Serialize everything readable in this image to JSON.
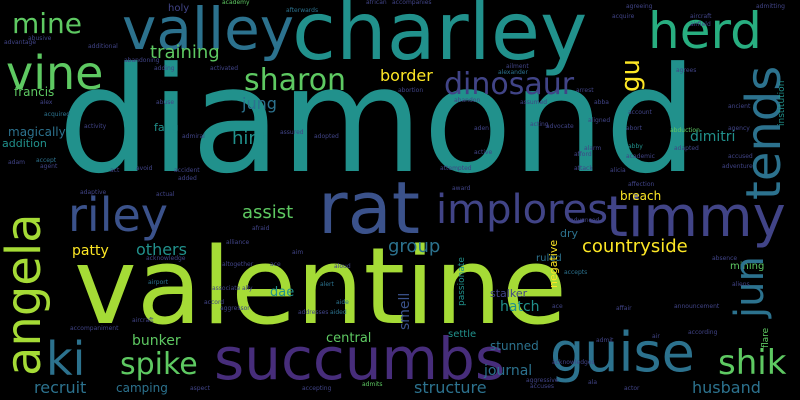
{
  "palette": {
    "background": "#000000",
    "teal": "#21918c",
    "lime": "#a5db36",
    "green": "#5ec962",
    "yellow": "#fde725",
    "slate": "#3b528b",
    "blue": "#2c728e",
    "indigo": "#414487",
    "purple": "#472d7b",
    "mint": "#28ae80",
    "dark": "#440154"
  },
  "words": {
    "diamond": "diamond",
    "valentine": "valentine",
    "charley": "charley",
    "rat": "rat",
    "succumbs": "succumbs",
    "valley": "valley",
    "guise": "guise",
    "timmy": "timmy",
    "riley": "riley",
    "implores": "implores",
    "angela": "angela",
    "tends": "tends",
    "herd": "herd",
    "vine": "vine",
    "jun": "jun",
    "ki": "ki",
    "shik": "shik",
    "spike": "spike",
    "dinosaur": "dinosaur",
    "sharon": "sharon",
    "mine": "mine",
    "countryside": "countryside",
    "gu": "gu",
    "training": "training",
    "border": "border",
    "assist": "assist",
    "others": "others",
    "jung": "jung",
    "hint": "hint",
    "group": "group",
    "patty": "patty",
    "francis": "francis",
    "bunker": "bunker",
    "journal": "journal",
    "structure": "structure",
    "husband": "husband",
    "recruit": "recruit",
    "hatch": "hatch",
    "dimitri": "dimitri",
    "breach": "breach",
    "dae": "dae",
    "central": "central",
    "magically": "magically",
    "addition": "addition",
    "stunned": "stunned",
    "camping": "camping",
    "smell": "smell",
    "stalker": "stalker",
    "settle": "settle",
    "fang": "fang",
    "mining": "mining",
    "flare": "flare",
    "institution": "institution",
    "negative": "negative",
    "ruled": "ruled",
    "dry": "dry",
    "passionate": "passionate",
    "holy": "holy",
    "acquire": "acquire",
    "abduction": "abduction",
    "abby": "abby",
    "alexander": "alexander",
    "airport": "airport",
    "accept": "accept",
    "actual": "actual",
    "advanced": "advanced",
    "affection": "affection",
    "account": "account",
    "accepts": "accepts",
    "abusive": "abusive",
    "academy": "academy",
    "admitting": "admitting",
    "activity": "activity",
    "aircraft": "aircraft",
    "aide": "aide",
    "afterwards": "afterwards",
    "acquired": "acquired",
    "alex": "alex",
    "adding": "adding",
    "activated": "activated",
    "abandoning": "abandoning",
    "african": "african",
    "accompanies": "accompanies",
    "aircraft2": "airfield",
    "agreeing": "agreeing",
    "additional": "additional",
    "advantage": "advantage",
    "agrees": "agrees",
    "abortion": "abortion",
    "abuse": "abuse",
    "active": "active",
    "alarm": "alarm",
    "attack": "attack",
    "accused": "accused",
    "adventure": "adventure",
    "absence": "absence",
    "acting": "acting",
    "abort": "abort",
    "assured": "assured",
    "aircraft3": "aircraft",
    "actor": "actor",
    "alert": "alert",
    "aided": "aided",
    "admits": "admits",
    "accepting": "accepting",
    "aggressive": "aggressive",
    "ala": "ala",
    "award": "award",
    "adaptive": "adaptive",
    "announcement": "announcement",
    "accompaniment": "accompaniment",
    "accord": "accord",
    "acknowledge": "acknowledge",
    "acknowledges": "acknowledges",
    "accuses": "accuses",
    "according": "according",
    "ace": "ace",
    "admit": "admit",
    "air": "air",
    "aliens": "aliens",
    "affair": "affair",
    "altogether": "altogether",
    "aspect": "aspect",
    "ally": "ally",
    "alliance": "alliance",
    "associate": "associate",
    "aim": "aim",
    "addresses": "addresses",
    "afraid": "afraid",
    "aloud": "aloud",
    "ailment": "ailment",
    "aggressor": "aggressor",
    "ancient": "ancient",
    "agency": "agency",
    "arrest": "arrest",
    "aden": "aden",
    "adopted": "adopted",
    "afford": "afford",
    "adapted": "adapted",
    "academic": "academic",
    "aligned": "aligned",
    "assumed": "assumed",
    "abandon": "abandon",
    "attempted": "attempted",
    "added": "added",
    "agent": "agent",
    "adam": "adam",
    "avoid": "avoid",
    "accident": "accident",
    "act": "act",
    "admiral": "admiral",
    "advocate": "advocate",
    "alicia": "alicia",
    "abba": "abba",
    "ace2": "ace"
  }
}
